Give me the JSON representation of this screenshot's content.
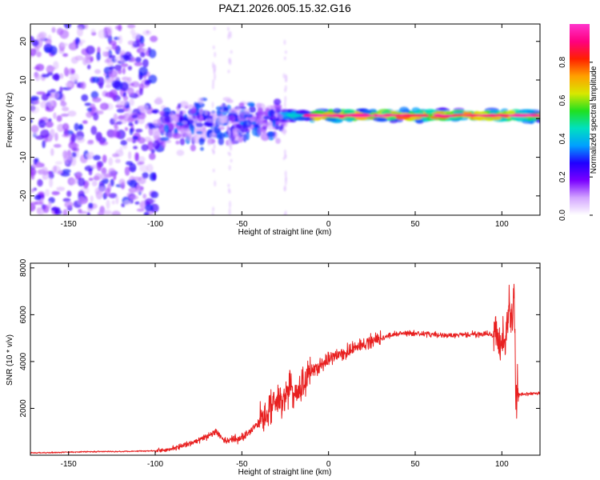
{
  "title": "PAZ1.2026.005.15.32.G16",
  "colors": {
    "line": "#e82020",
    "frame": "#000000",
    "blob_dark": "#4b0fcf",
    "blob_light": "#c8a0f0"
  },
  "chart_data": [
    {
      "type": "heatmap",
      "xlabel": "Height of straight line (km)",
      "ylabel": "Frequency (Hz)",
      "xlim": [
        -172,
        122
      ],
      "ylim": [
        -25,
        24.5
      ],
      "xticks": [
        -150,
        -100,
        -50,
        0,
        50,
        100
      ],
      "yticks": [
        -20,
        -10,
        0,
        10,
        20
      ],
      "colorbar": {
        "label": "Normalized spectral amplitude",
        "range": [
          0.0,
          1.0
        ],
        "ticks": [
          "0.0",
          "0.2",
          "0.4",
          "0.6",
          "0.8"
        ],
        "tick_values": [
          0.0,
          0.2,
          0.4,
          0.6,
          0.8
        ],
        "colormap": [
          "#ffffff",
          "#d3a6ff",
          "#7a00ff",
          "#2000ff",
          "#00a0ff",
          "#00e0c0",
          "#20e020",
          "#d8e800",
          "#ffa000",
          "#ff2000",
          "#ff0080",
          "#ff33cc"
        ]
      },
      "features": [
        {
          "name": "noise",
          "x_range": [
            -172,
            -100
          ],
          "freq_range": [
            -25,
            24.5
          ],
          "amplitude": "low (0.0-0.2)"
        },
        {
          "name": "transition",
          "x_range": [
            -100,
            -25
          ],
          "freq_range": [
            -15,
            10
          ],
          "amplitude": "low-medium (0.1-0.35)"
        },
        {
          "name": "carrier",
          "x_range": [
            -25,
            122
          ],
          "freq_center": 0.8,
          "freq_halfwidth": 1.5,
          "peak_amplitude": 0.95
        }
      ]
    },
    {
      "type": "line",
      "xlabel": "Height of straight line (km)",
      "ylabel": "SNR (10 * v/v)",
      "xlim": [
        -172,
        122
      ],
      "ylim": [
        0,
        8200
      ],
      "xticks": [
        -150,
        -100,
        -50,
        0,
        50,
        100
      ],
      "yticks": [
        2000,
        4000,
        6000,
        8000
      ],
      "series": [
        {
          "name": "SNR",
          "x": [
            -172,
            -160,
            -140,
            -120,
            -100,
            -90,
            -80,
            -70,
            -65,
            -60,
            -50,
            -40,
            -35,
            -30,
            -25,
            -22,
            -20,
            -17,
            -15,
            -12,
            -10,
            -5,
            0,
            10,
            20,
            25,
            30,
            40,
            50,
            60,
            70,
            80,
            90,
            95,
            98,
            100,
            102,
            104,
            106,
            107,
            108,
            109,
            110,
            112,
            122
          ],
          "values": [
            100,
            110,
            150,
            160,
            190,
            280,
            480,
            800,
            1000,
            600,
            750,
            1400,
            2000,
            2300,
            2400,
            3000,
            2500,
            2800,
            3000,
            3300,
            3600,
            3800,
            4100,
            4400,
            4700,
            4900,
            5000,
            5200,
            5200,
            5150,
            5100,
            5150,
            5200,
            5100,
            5000,
            4900,
            4700,
            6500,
            5500,
            7200,
            2600,
            2700,
            2600,
            2600,
            2650
          ]
        }
      ]
    }
  ]
}
